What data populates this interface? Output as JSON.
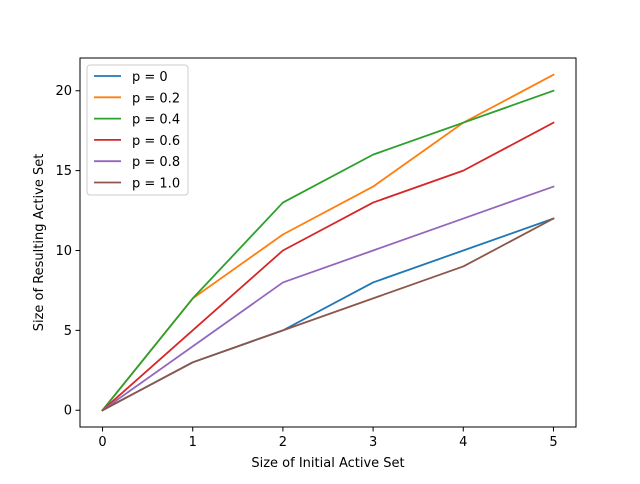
{
  "chart_data": {
    "type": "line",
    "title": "",
    "xlabel": "Size of Initial Active Set",
    "ylabel": "Size of Resulting Active Set",
    "x": [
      0,
      1,
      2,
      3,
      4,
      5
    ],
    "xlim": [
      -0.25,
      5.25
    ],
    "ylim": [
      -1.05,
      22.05
    ],
    "xticks": [
      0,
      1,
      2,
      3,
      4,
      5
    ],
    "yticks": [
      0,
      5,
      10,
      15,
      20
    ],
    "grid": false,
    "legend_placement": "upper-left",
    "series": [
      {
        "name": "p = 0",
        "color": "#1f77b4",
        "values": [
          0,
          3,
          5,
          8,
          10,
          12
        ]
      },
      {
        "name": "p = 0.2",
        "color": "#ff7f0e",
        "values": [
          0,
          7,
          11,
          14,
          18,
          21
        ]
      },
      {
        "name": "p = 0.4",
        "color": "#2ca02c",
        "values": [
          0,
          7,
          13,
          16,
          18,
          20
        ]
      },
      {
        "name": "p = 0.6",
        "color": "#d62728",
        "values": [
          0,
          5,
          10,
          13,
          15,
          18
        ]
      },
      {
        "name": "p = 0.8",
        "color": "#9467bd",
        "values": [
          0,
          4,
          8,
          10,
          12,
          14
        ]
      },
      {
        "name": "p = 1.0",
        "color": "#8c564b",
        "values": [
          0,
          3,
          5,
          7,
          9,
          12
        ]
      }
    ]
  }
}
